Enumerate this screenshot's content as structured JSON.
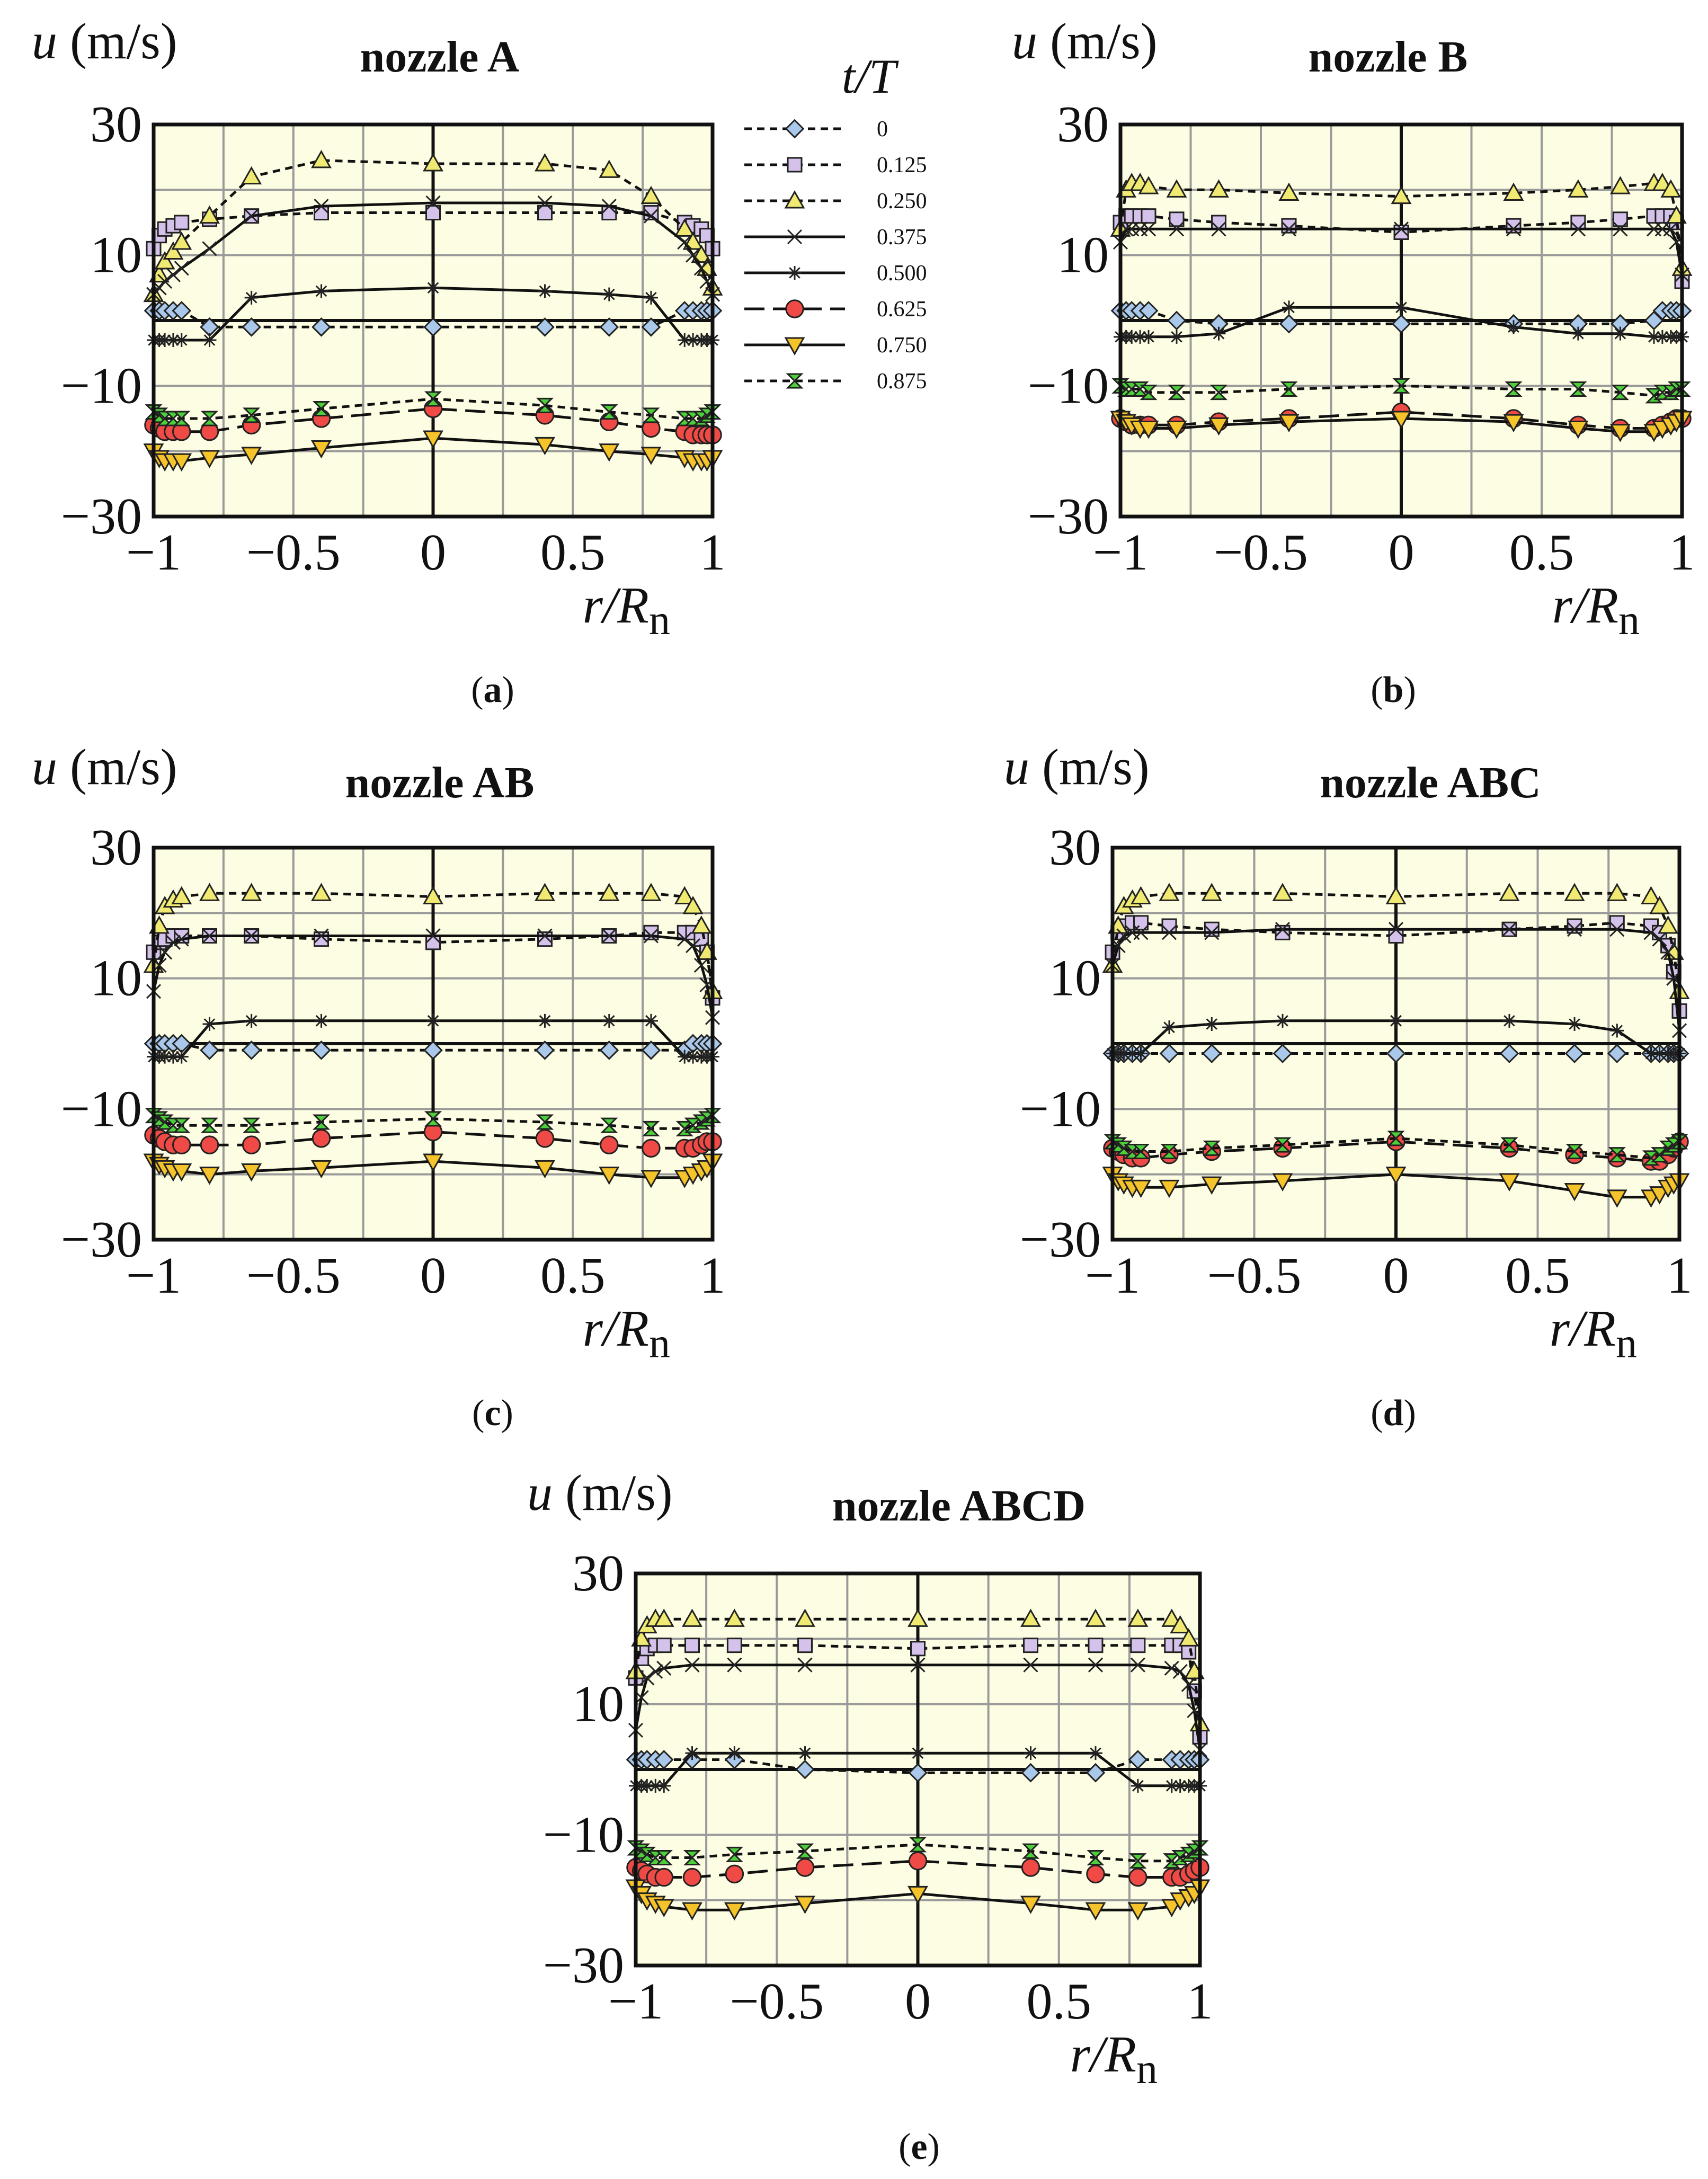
{
  "chart_data": {
    "type": "line",
    "legend": {
      "title": "t/T",
      "entries": [
        {
          "label": "0",
          "marker": "diamond",
          "fill": "#a9c8ea",
          "dash": "dashed",
          "line": "#111111"
        },
        {
          "label": "0.125",
          "marker": "square",
          "fill": "#d4c2ea",
          "dash": "dashed",
          "line": "#111111"
        },
        {
          "label": "0.250",
          "marker": "triangle",
          "fill": "#f0ea72",
          "dash": "dashed",
          "line": "#111111"
        },
        {
          "label": "0.375",
          "marker": "x",
          "fill": "none",
          "dash": "solid",
          "line": "#111111"
        },
        {
          "label": "0.500",
          "marker": "asterisk",
          "fill": "none",
          "dash": "solid",
          "line": "#111111"
        },
        {
          "label": "0.625",
          "marker": "circle",
          "fill": "#ef4a45",
          "dash": "longdash",
          "line": "#111111"
        },
        {
          "label": "0.750",
          "marker": "tri-down",
          "fill": "#f5c32a",
          "dash": "solid",
          "line": "#111111"
        },
        {
          "label": "0.875",
          "marker": "hourglass",
          "fill": "#4ccf3a",
          "dash": "dashed",
          "line": "#111111"
        }
      ]
    },
    "xlabel": "r/R",
    "xlabel_sub": "n",
    "ylabel_var": "u",
    "ylabel_unit": "(m/s)",
    "xlim": [
      -1,
      1
    ],
    "ylim": [
      -30,
      30
    ],
    "xticks": [
      "−1",
      "−0.5",
      "0",
      "0.5",
      "1"
    ],
    "yticks": [
      "30",
      "10",
      "−10",
      "−30"
    ],
    "ytick_values": [
      30,
      10,
      -10,
      -30
    ],
    "grid": true,
    "x": [
      -1,
      -0.98,
      -0.96,
      -0.93,
      -0.9,
      -0.8,
      -0.65,
      -0.4,
      0,
      0.4,
      0.63,
      0.78,
      0.9,
      0.93,
      0.96,
      0.98,
      1
    ],
    "panels": [
      {
        "title": "nozzle A",
        "label": "(a)",
        "series": [
          [
            1.5,
            1.5,
            1.5,
            1.5,
            1.5,
            -1,
            -1,
            -1,
            -1,
            -1,
            -1,
            -1,
            1.5,
            1.5,
            1.5,
            1.5,
            1.5
          ],
          [
            11,
            13,
            14,
            14.5,
            15,
            15.5,
            16,
            16.5,
            16.5,
            16.5,
            16.5,
            16.5,
            15,
            14.5,
            14,
            13,
            11
          ],
          [
            4,
            7,
            9,
            10.5,
            12,
            16,
            22,
            24.5,
            24,
            24,
            23,
            19,
            14,
            12,
            10,
            8,
            5
          ],
          [
            4,
            5,
            6,
            7,
            8,
            11,
            16,
            17.5,
            18,
            18,
            17.5,
            16,
            12,
            10,
            8,
            6,
            4
          ],
          [
            -3,
            -3,
            -3,
            -3,
            -3,
            -3,
            3.5,
            4.5,
            5,
            4.5,
            4,
            3.5,
            -3,
            -3,
            -3,
            -3,
            -3
          ],
          [
            -16,
            -16.5,
            -17,
            -17,
            -17,
            -17,
            -16,
            -15,
            -13.5,
            -14.5,
            -15.5,
            -16.5,
            -17,
            -17.5,
            -17.5,
            -17.5,
            -17.5
          ],
          [
            -20,
            -21,
            -21.5,
            -21.5,
            -21.5,
            -21,
            -20.5,
            -19.5,
            -18,
            -19,
            -20,
            -20.5,
            -21,
            -21.5,
            -21.5,
            -21.5,
            -21
          ],
          [
            -14,
            -14.5,
            -15,
            -15,
            -15,
            -15,
            -14.5,
            -13.5,
            -12,
            -13,
            -14,
            -14.5,
            -15,
            -15,
            -15,
            -14.5,
            -14
          ]
        ]
      },
      {
        "title": "nozzle B",
        "label": "(b)",
        "series": [
          [
            1.5,
            1.5,
            1.5,
            1.5,
            1.5,
            0,
            -0.5,
            -0.5,
            -0.5,
            -0.5,
            -0.5,
            -0.5,
            0,
            1.5,
            1.5,
            1.5,
            1.5
          ],
          [
            15,
            16,
            16,
            16,
            16,
            15.5,
            15,
            14.5,
            13.5,
            14.5,
            15,
            15.5,
            16,
            16,
            16,
            15,
            6
          ],
          [
            14,
            20,
            21,
            21,
            20.5,
            20,
            20,
            19.5,
            19,
            19.5,
            20,
            20.5,
            21,
            21,
            20,
            16,
            8
          ],
          [
            12,
            14,
            14,
            14,
            14,
            14,
            14,
            14,
            14,
            14,
            14,
            14,
            14,
            14,
            14,
            12,
            7
          ],
          [
            -2.5,
            -2.5,
            -2.5,
            -2.5,
            -2.5,
            -2.5,
            -2,
            2,
            2,
            -1,
            -2,
            -2,
            -2.5,
            -2.5,
            -2.5,
            -2.5,
            -2.5
          ],
          [
            -15,
            -15.5,
            -16,
            -16,
            -16,
            -16,
            -15.5,
            -15,
            -14,
            -15,
            -16,
            -16.5,
            -16.5,
            -16,
            -15.5,
            -15,
            -15
          ],
          [
            -15,
            -15.5,
            -16,
            -16.5,
            -16.5,
            -16.5,
            -16,
            -15.5,
            -15,
            -15.5,
            -16.5,
            -17,
            -17,
            -16.5,
            -16,
            -15.5,
            -15
          ],
          [
            -10,
            -10.5,
            -10.5,
            -10.5,
            -11,
            -11,
            -11,
            -10.5,
            -10,
            -10.5,
            -10.5,
            -11,
            -11.5,
            -11,
            -11,
            -10.5,
            -10.5
          ]
        ]
      },
      {
        "title": "nozzle AB",
        "label": "(c)",
        "series": [
          [
            0,
            0,
            0,
            0,
            0,
            -1,
            -1,
            -1,
            -1,
            -1,
            -1,
            -1,
            -1,
            0,
            0,
            0,
            0
          ],
          [
            14,
            15.5,
            16,
            16.5,
            16.5,
            16.5,
            16.5,
            16,
            15.5,
            16,
            16.5,
            17,
            17,
            17,
            16,
            14,
            7
          ],
          [
            12,
            18,
            21,
            22,
            22.5,
            23,
            23,
            23,
            22.5,
            23,
            23,
            23,
            22.5,
            21,
            18,
            14,
            8
          ],
          [
            8,
            12,
            14,
            15.5,
            16,
            16.5,
            16.5,
            16.5,
            16.5,
            16.5,
            16.5,
            16.5,
            16,
            15,
            12,
            9,
            4
          ],
          [
            -2,
            -2,
            -2,
            -2,
            -2,
            3,
            3.5,
            3.5,
            3.5,
            3.5,
            3.5,
            3.5,
            -2,
            -2,
            -2,
            -2,
            -2
          ],
          [
            -14,
            -14.5,
            -15,
            -15.5,
            -15.5,
            -15.5,
            -15.5,
            -14.5,
            -13.5,
            -14.5,
            -15.5,
            -16,
            -16,
            -16,
            -15.5,
            -15,
            -15
          ],
          [
            -18,
            -18.5,
            -19,
            -19.5,
            -19.5,
            -20,
            -19.5,
            -19,
            -18,
            -19,
            -20,
            -20.5,
            -20.5,
            -20,
            -19.5,
            -19,
            -18
          ],
          [
            -11,
            -11.5,
            -12,
            -12.5,
            -12.5,
            -12.5,
            -12.5,
            -12,
            -11.5,
            -12,
            -12.5,
            -13,
            -13,
            -12.5,
            -12,
            -11.5,
            -11
          ]
        ]
      },
      {
        "title": "nozzle ABC",
        "label": "(d)",
        "series": [
          [
            -1.5,
            -1.5,
            -1.5,
            -1.5,
            -1.5,
            -1.5,
            -1.5,
            -1.5,
            -1.5,
            -1.5,
            -1.5,
            -1.5,
            -1.5,
            -1.5,
            -1.5,
            -1.5,
            -1.5
          ],
          [
            14,
            17,
            18,
            18.5,
            18.5,
            18,
            17.5,
            17,
            16.5,
            17.5,
            18,
            18.5,
            18,
            17,
            15,
            11,
            5
          ],
          [
            12,
            18,
            21,
            22,
            22.5,
            23,
            23,
            23,
            22.5,
            23,
            23,
            23,
            22.5,
            21,
            18,
            14,
            8
          ],
          [
            12,
            15,
            16.5,
            17,
            17,
            17,
            17,
            17.5,
            17.5,
            17.5,
            17.5,
            17.5,
            17,
            16,
            14,
            10,
            2
          ],
          [
            -1.5,
            -1.5,
            -1.5,
            -1.5,
            -1.5,
            2.5,
            3,
            3.5,
            3.5,
            3.5,
            3,
            2,
            -1.5,
            -1.5,
            -1.5,
            -1.5,
            -1.5
          ],
          [
            -16,
            -16.5,
            -17,
            -17.5,
            -17.5,
            -17,
            -16.5,
            -16,
            -15,
            -16,
            -17,
            -17.5,
            -18,
            -18,
            -17,
            -16,
            -15
          ],
          [
            -20,
            -21,
            -21.5,
            -22,
            -22,
            -22,
            -21.5,
            -21,
            -20,
            -21,
            -22.5,
            -23.5,
            -23.5,
            -23,
            -22,
            -21.5,
            -21
          ],
          [
            -15,
            -15.5,
            -16,
            -16.5,
            -16.5,
            -16.5,
            -16,
            -15.5,
            -14.5,
            -15.5,
            -16.5,
            -17,
            -17.5,
            -17,
            -16,
            -15.5,
            -15
          ]
        ]
      },
      {
        "title": "nozzle ABCD",
        "label": "(e)",
        "series": [
          [
            1.5,
            1.5,
            1.5,
            1.5,
            1.5,
            1.5,
            1.5,
            0,
            -0.5,
            -0.5,
            -0.5,
            1.5,
            1.5,
            1.5,
            1.5,
            1.5,
            1.5
          ],
          [
            14,
            17,
            18.5,
            19,
            19,
            19,
            19,
            19,
            18.5,
            19,
            19,
            19,
            19,
            19,
            18,
            12,
            5
          ],
          [
            15,
            20,
            22,
            23,
            23,
            23,
            23,
            23,
            23,
            23,
            23,
            23,
            23,
            22,
            20,
            15,
            7
          ],
          [
            6,
            11,
            14,
            15,
            15.5,
            16,
            16,
            16,
            16,
            16,
            16,
            16,
            15.5,
            15,
            13,
            9,
            3
          ],
          [
            -2.5,
            -2.5,
            -2.5,
            -2.5,
            -2.5,
            2.5,
            2.5,
            2.5,
            2.5,
            2.5,
            2.5,
            -2.5,
            -2.5,
            -2.5,
            -2.5,
            -2.5,
            -2.5
          ],
          [
            -15,
            -15.5,
            -16,
            -16.5,
            -16.5,
            -16.5,
            -16,
            -15,
            -14,
            -15,
            -16,
            -16.5,
            -16.5,
            -16.5,
            -16,
            -15.5,
            -15
          ],
          [
            -18,
            -19,
            -20,
            -20.5,
            -21,
            -21.5,
            -21.5,
            -20.5,
            -19,
            -20.5,
            -21.5,
            -21.5,
            -21,
            -20,
            -19.5,
            -19,
            -18
          ],
          [
            -12,
            -12.5,
            -13,
            -13.5,
            -13.5,
            -13.5,
            -13,
            -12.5,
            -11.5,
            -12.5,
            -13.5,
            -14,
            -14,
            -13.5,
            -13,
            -12.5,
            -12
          ]
        ]
      }
    ]
  }
}
